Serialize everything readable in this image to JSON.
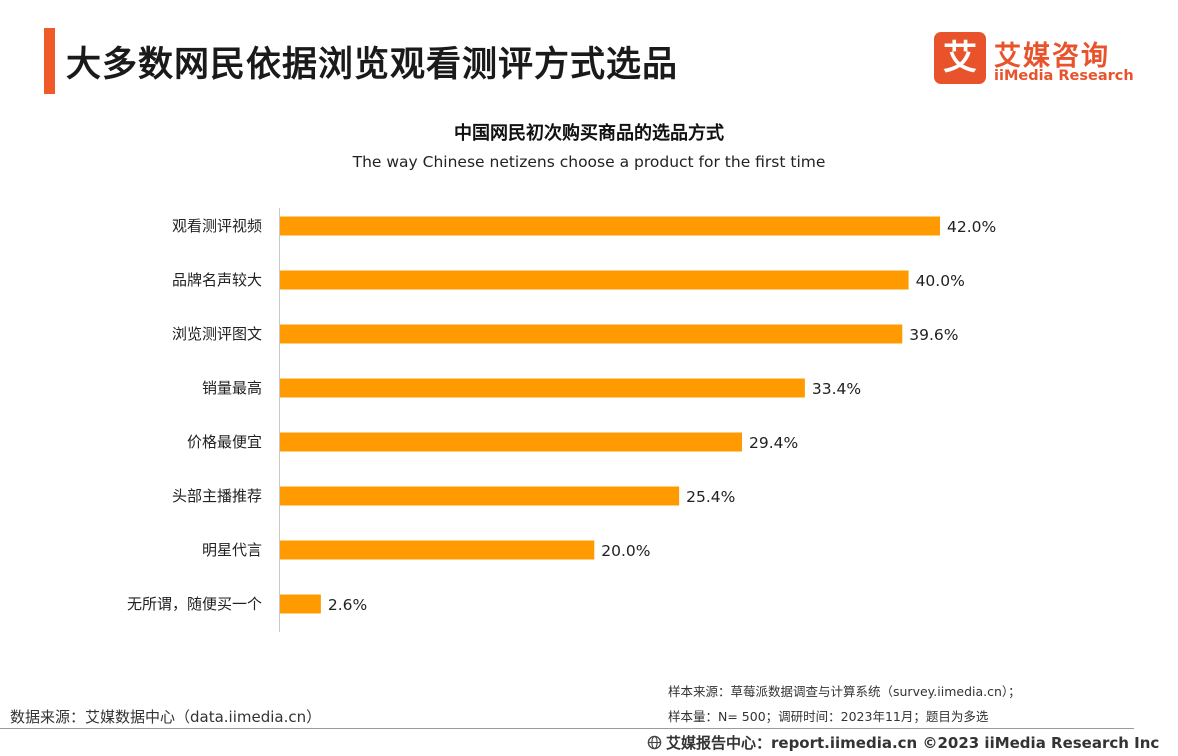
{
  "header": {
    "title": "大多数网民依据浏览观看测评方式选品",
    "logo_mark": "艾",
    "logo_cn": "艾媒咨询",
    "logo_en": "iiMedia Research"
  },
  "chart_data": {
    "type": "bar",
    "orientation": "horizontal",
    "title": "中国网民初次购买商品的选品方式",
    "subtitle": "The way Chinese netizens choose a product for the first time",
    "categories": [
      "观看测评视频",
      "品牌名声较大",
      "浏览测评图文",
      "销量最高",
      "价格最便宜",
      "头部主播推荐",
      "明星代言",
      "无所谓，随便买一个"
    ],
    "values": [
      42.0,
      40.0,
      39.6,
      33.4,
      29.4,
      25.4,
      20.0,
      2.6
    ],
    "value_labels": [
      "42.0%",
      "40.0%",
      "39.6%",
      "33.4%",
      "29.4%",
      "25.4%",
      "20.0%",
      "2.6%"
    ],
    "unit": "%",
    "xlabel": "",
    "ylabel": "",
    "xlim": [
      0,
      42
    ],
    "grid": false,
    "bar_color": "#ff9a00"
  },
  "footer": {
    "source_left": "数据来源：艾媒数据中心（data.iimedia.cn）",
    "note1": "样本来源：草莓派数据调查与计算系统（survey.iimedia.cn）；",
    "note2": "样本量：N= 500；调研时间：2023年11月；题目为多选",
    "report": "艾媒报告中心：report.iimedia.cn   ©2023  iiMedia Research  Inc"
  }
}
